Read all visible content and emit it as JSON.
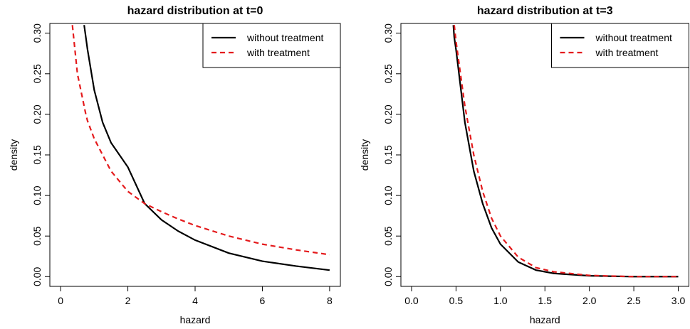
{
  "chart_data": [
    {
      "type": "line",
      "title": "hazard distribution at t=0",
      "x_label": "hazard",
      "y_label": "density",
      "x": [
        0.35,
        0.5,
        0.7,
        0.75,
        0.8,
        1.0,
        1.25,
        1.5,
        2.0,
        2.5,
        3.0,
        3.5,
        4.0,
        5.0,
        6.0,
        7.0,
        8.0
      ],
      "series": [
        {
          "name": "without treatment",
          "color": "#000000",
          "dash": false,
          "values": [
            null,
            null,
            0.31,
            0.295,
            0.28,
            0.23,
            0.19,
            0.165,
            0.135,
            0.09,
            0.07,
            0.056,
            0.045,
            0.029,
            0.019,
            0.013,
            0.008
          ]
        },
        {
          "name": "with treatment",
          "color": "#e41a1c",
          "dash": true,
          "values": [
            0.31,
            0.25,
            0.21,
            0.2,
            0.192,
            0.17,
            0.15,
            0.13,
            0.105,
            0.09,
            0.08,
            0.071,
            0.063,
            0.05,
            0.04,
            0.033,
            0.027
          ]
        }
      ],
      "xlim": [
        -0.32,
        8.32
      ],
      "ylim": [
        -0.012,
        0.312
      ],
      "xticks": [
        0,
        2,
        4,
        6,
        8
      ],
      "yticks": [
        {
          "value": 0,
          "label": "0.00"
        },
        0.05,
        {
          "value": 0.1,
          "label": "0.10"
        },
        0.15,
        {
          "value": 0.2,
          "label": "0.20"
        },
        0.25,
        {
          "value": 0.3,
          "label": "0.30"
        }
      ],
      "legend": "topright"
    },
    {
      "type": "line",
      "title": "hazard distribution at t=3",
      "x_label": "hazard",
      "y_label": "density",
      "x": [
        0.47,
        0.48,
        0.5,
        0.6,
        0.7,
        0.8,
        0.9,
        1.0,
        1.2,
        1.4,
        1.6,
        2.0,
        2.5,
        3.0
      ],
      "series": [
        {
          "name": "without treatment",
          "color": "#000000",
          "dash": false,
          "values": [
            0.31,
            0.295,
            0.28,
            0.19,
            0.13,
            0.09,
            0.06,
            0.04,
            0.018,
            0.008,
            0.004,
            0.001,
            0.0,
            0.0
          ]
        },
        {
          "name": "with treatment",
          "color": "#e41a1c",
          "dash": true,
          "values": [
            null,
            0.31,
            0.29,
            0.21,
            0.15,
            0.105,
            0.072,
            0.05,
            0.024,
            0.011,
            0.006,
            0.0015,
            0.0,
            0.0
          ]
        }
      ],
      "xlim": [
        -0.12,
        3.12
      ],
      "ylim": [
        -0.012,
        0.312
      ],
      "xticks": [
        {
          "value": 0,
          "label": "0.0"
        },
        0.5,
        {
          "value": 1,
          "label": "1.0"
        },
        1.5,
        {
          "value": 2,
          "label": "2.0"
        },
        2.5,
        {
          "value": 3,
          "label": "3.0"
        }
      ],
      "yticks": [
        {
          "value": 0,
          "label": "0.00"
        },
        0.05,
        {
          "value": 0.1,
          "label": "0.10"
        },
        0.15,
        {
          "value": 0.2,
          "label": "0.20"
        },
        0.25,
        {
          "value": 0.3,
          "label": "0.30"
        }
      ],
      "legend": "topright"
    }
  ]
}
